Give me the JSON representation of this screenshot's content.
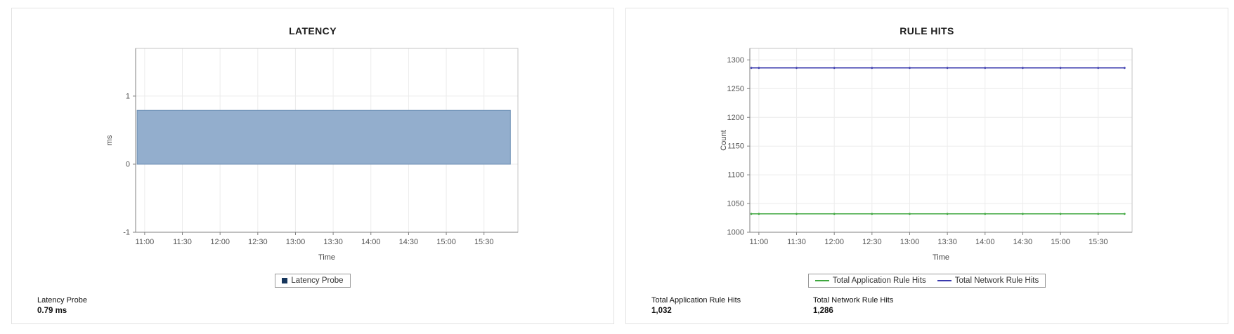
{
  "panels": [
    {
      "title": "LATENCY",
      "legend": [
        {
          "label": "Latency Probe",
          "color": "#16365c",
          "marker": "square"
        }
      ],
      "stats": [
        {
          "label": "Latency Probe",
          "value": "0.79 ms"
        }
      ]
    },
    {
      "title": "RULE HITS",
      "legend": [
        {
          "label": "Total Application Rule Hits",
          "color": "#3fa73f",
          "marker": "line"
        },
        {
          "label": "Total Network Rule Hits",
          "color": "#3a3aae",
          "marker": "line"
        }
      ],
      "stats": [
        {
          "label": "Total Application Rule Hits",
          "value": "1,032"
        },
        {
          "label": "Total Network Rule Hits",
          "value": "1,286"
        }
      ]
    }
  ],
  "chart_data": [
    {
      "type": "area",
      "title": "LATENCY",
      "xlabel": "Time",
      "ylabel": "ms",
      "xlim": [
        10.88,
        15.95
      ],
      "ylim": [
        -1,
        1.7
      ],
      "x_ticks": [
        {
          "v": 11,
          "label": "11:00"
        },
        {
          "v": 11.5,
          "label": "11:30"
        },
        {
          "v": 12,
          "label": "12:00"
        },
        {
          "v": 12.5,
          "label": "12:30"
        },
        {
          "v": 13,
          "label": "13:00"
        },
        {
          "v": 13.5,
          "label": "13:30"
        },
        {
          "v": 14,
          "label": "14:00"
        },
        {
          "v": 14.5,
          "label": "14:30"
        },
        {
          "v": 15,
          "label": "15:00"
        },
        {
          "v": 15.5,
          "label": "15:30"
        }
      ],
      "y_ticks": [
        -1,
        0,
        1
      ],
      "grid": true,
      "legend_position": "bottom",
      "series": [
        {
          "name": "Latency Probe",
          "color": "#6d8fb5",
          "fill": "#93aecd",
          "x": [
            10.9,
            11,
            11.5,
            12,
            12.5,
            13,
            13.5,
            14,
            14.5,
            15,
            15.5,
            15.85
          ],
          "values": [
            0.79,
            0.79,
            0.79,
            0.79,
            0.79,
            0.79,
            0.79,
            0.79,
            0.79,
            0.79,
            0.79,
            0.79
          ]
        }
      ]
    },
    {
      "type": "line",
      "title": "RULE HITS",
      "xlabel": "Time",
      "ylabel": "Count",
      "xlim": [
        10.88,
        15.95
      ],
      "ylim": [
        1000,
        1320
      ],
      "x_ticks": [
        {
          "v": 11,
          "label": "11:00"
        },
        {
          "v": 11.5,
          "label": "11:30"
        },
        {
          "v": 12,
          "label": "12:00"
        },
        {
          "v": 12.5,
          "label": "12:30"
        },
        {
          "v": 13,
          "label": "13:00"
        },
        {
          "v": 13.5,
          "label": "13:30"
        },
        {
          "v": 14,
          "label": "14:00"
        },
        {
          "v": 14.5,
          "label": "14:30"
        },
        {
          "v": 15,
          "label": "15:00"
        },
        {
          "v": 15.5,
          "label": "15:30"
        }
      ],
      "y_ticks": [
        1000,
        1050,
        1100,
        1150,
        1200,
        1250,
        1300
      ],
      "grid": true,
      "legend_position": "bottom",
      "series": [
        {
          "name": "Total Application Rule Hits",
          "color": "#3fa73f",
          "x": [
            10.9,
            11,
            11.5,
            12,
            12.5,
            13,
            13.5,
            14,
            14.5,
            15,
            15.5,
            15.85
          ],
          "values": [
            1032,
            1032,
            1032,
            1032,
            1032,
            1032,
            1032,
            1032,
            1032,
            1032,
            1032,
            1032
          ]
        },
        {
          "name": "Total Network Rule Hits",
          "color": "#3a3aae",
          "x": [
            10.9,
            11,
            11.5,
            12,
            12.5,
            13,
            13.5,
            14,
            14.5,
            15,
            15.5,
            15.85
          ],
          "values": [
            1286,
            1286,
            1286,
            1286,
            1286,
            1286,
            1286,
            1286,
            1286,
            1286,
            1286,
            1286
          ]
        }
      ]
    }
  ]
}
